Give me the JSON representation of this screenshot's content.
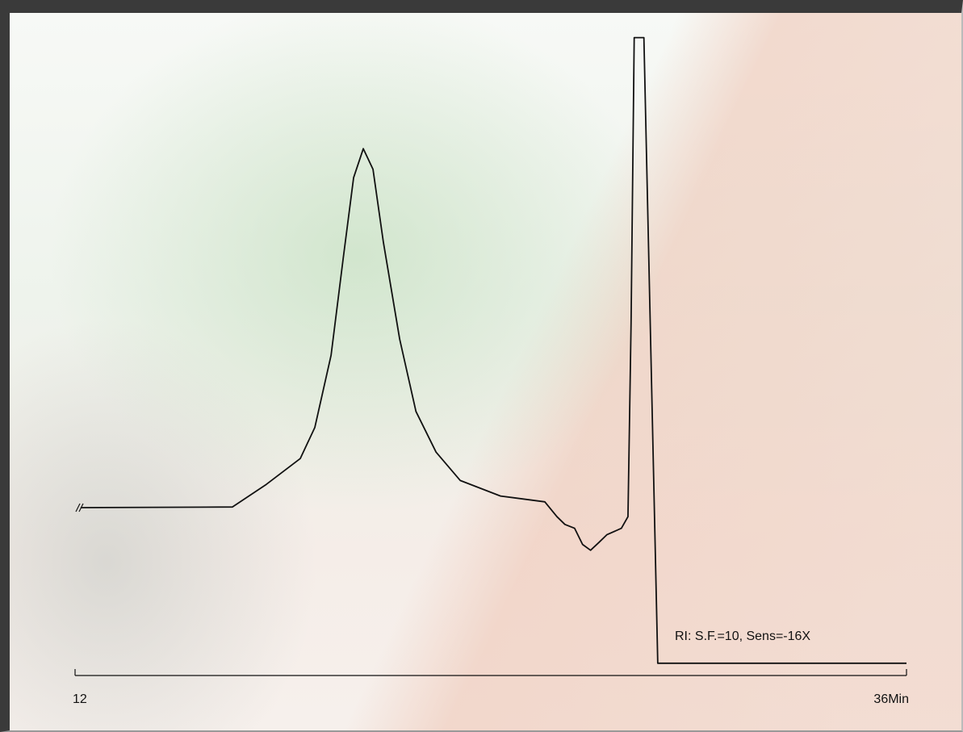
{
  "chart_data": {
    "type": "line",
    "annotation": "RI: S.F.=10, Sens=-16X",
    "x": [
      12.16,
      16.54,
      17.52,
      18.5,
      18.92,
      19.39,
      19.74,
      20.04,
      20.32,
      20.6,
      20.9,
      21.37,
      21.84,
      22.42,
      23.12,
      24.28,
      25.56,
      25.91,
      26.14,
      26.42,
      26.65,
      26.88,
      27.12,
      27.35,
      27.77,
      27.96,
      28.05,
      28.14,
      28.42,
      28.82,
      36
    ],
    "values": [
      26,
      26.1,
      29.6,
      33.6,
      38.4,
      49.6,
      64.6,
      77.1,
      81.6,
      78.4,
      67.1,
      52.1,
      40.9,
      34.6,
      30.2,
      27.8,
      26.9,
      24.6,
      23.4,
      22.8,
      20.3,
      19.4,
      20.6,
      21.8,
      22.8,
      24.6,
      54.6,
      98.8,
      98.8,
      1.9,
      1.9
    ],
    "color": "#111111",
    "xlim": [
      12,
      36
    ],
    "xticks": [
      12,
      {
        "value": 36,
        "label": "36Min"
      }
    ],
    "ylim": [
      0,
      100
    ]
  }
}
